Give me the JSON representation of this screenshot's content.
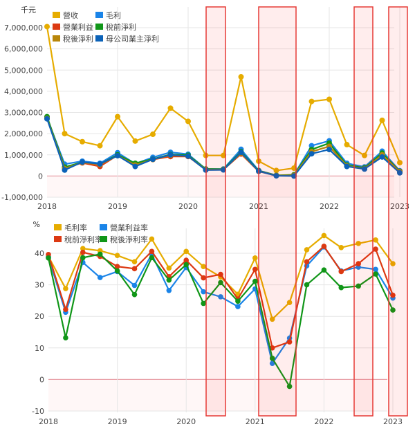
{
  "highlight_periods": [
    "2020Q2-2020Q3",
    "2021Q1-2021Q3",
    "2022Q3",
    "2023Q1"
  ],
  "chart_data": [
    {
      "type": "line",
      "unit_label": "千元",
      "x": [
        "2018Q1",
        "2018Q2",
        "2018Q3",
        "2018Q4",
        "2019Q1",
        "2019Q2",
        "2019Q3",
        "2019Q4",
        "2020Q1",
        "2020Q2",
        "2020Q3",
        "2020Q4",
        "2021Q1",
        "2021Q2",
        "2021Q3",
        "2021Q4",
        "2022Q1",
        "2022Q2",
        "2022Q3",
        "2022Q4",
        "2023Q1"
      ],
      "xticks": [
        "2018",
        "2019",
        "2020",
        "2021",
        "2022",
        "2023"
      ],
      "yticks": [
        "-1,000,000",
        "0",
        "1,000,000",
        "2,000,000",
        "3,000,000",
        "4,000,000",
        "5,000,000",
        "6,000,000",
        "7,000,000"
      ],
      "ylim": [
        -1000000,
        7000000
      ],
      "grid": true,
      "legend": "top-left",
      "series": [
        {
          "name": "營收",
          "color": "#e6ac00",
          "values": [
            7050000,
            2000000,
            1620000,
            1430000,
            2800000,
            1650000,
            1970000,
            3200000,
            2580000,
            970000,
            970000,
            4680000,
            700000,
            260000,
            370000,
            3520000,
            3620000,
            1480000,
            970000,
            2630000,
            630000
          ]
        },
        {
          "name": "毛利",
          "color": "#1a84e8",
          "values": [
            2750000,
            560000,
            700000,
            600000,
            1100000,
            580000,
            880000,
            1120000,
            1030000,
            330000,
            330000,
            1260000,
            260000,
            30000,
            50000,
            1430000,
            1660000,
            600000,
            430000,
            1170000,
            250000
          ]
        },
        {
          "name": "營業利益",
          "color": "#dc3912",
          "values": [
            2720000,
            380000,
            620000,
            450000,
            980000,
            500000,
            780000,
            920000,
            920000,
            300000,
            300000,
            1040000,
            220000,
            20000,
            20000,
            1150000,
            1400000,
            480000,
            340000,
            980000,
            180000
          ]
        },
        {
          "name": "稅前淨利",
          "color": "#109618",
          "values": [
            2800000,
            420000,
            650000,
            560000,
            1000000,
            600000,
            800000,
            1020000,
            980000,
            330000,
            320000,
            1150000,
            250000,
            30000,
            60000,
            1250000,
            1550000,
            520000,
            380000,
            1080000,
            220000
          ]
        },
        {
          "name": "稅後淨利",
          "color": "#b8860b",
          "values": [
            2720000,
            350000,
            640000,
            540000,
            960000,
            520000,
            780000,
            980000,
            940000,
            300000,
            300000,
            1080000,
            230000,
            20000,
            30000,
            1150000,
            1400000,
            480000,
            340000,
            1000000,
            200000
          ]
        },
        {
          "name": "母公司業主淨利",
          "color": "#0b62b8",
          "values": [
            2700000,
            280000,
            660000,
            570000,
            960000,
            450000,
            790000,
            1000000,
            940000,
            280000,
            290000,
            1120000,
            230000,
            10000,
            0,
            1050000,
            1250000,
            450000,
            330000,
            900000,
            150000
          ]
        }
      ]
    },
    {
      "type": "line",
      "unit_label": "%",
      "x": [
        "2018Q1",
        "2018Q2",
        "2018Q3",
        "2018Q4",
        "2019Q1",
        "2019Q2",
        "2019Q3",
        "2019Q4",
        "2020Q1",
        "2020Q2",
        "2020Q3",
        "2020Q4",
        "2021Q1",
        "2021Q2",
        "2021Q3",
        "2021Q4",
        "2022Q1",
        "2022Q2",
        "2022Q3",
        "2022Q4",
        "2023Q1"
      ],
      "xticks": [
        "2018",
        "2019",
        "2020",
        "2021",
        "2022",
        "2023"
      ],
      "yticks": [
        "-10",
        "0",
        "10",
        "20",
        "30",
        "40"
      ],
      "ylim": [
        -10,
        48
      ],
      "grid": true,
      "legend": "top-left",
      "series": [
        {
          "name": "毛利率",
          "color": "#e6ac00",
          "values": [
            39.0,
            28.8,
            41.5,
            40.8,
            39.3,
            37.3,
            44.5,
            35.3,
            40.6,
            35.8,
            32.5,
            27.0,
            38.5,
            19.1,
            24.4,
            41.1,
            45.6,
            41.8,
            43.1,
            44.2,
            36.7
          ]
        },
        {
          "name": "營業利益率",
          "color": "#1a84e8",
          "values": [
            38.8,
            21.3,
            37.1,
            32.3,
            34.2,
            29.8,
            39.7,
            28.2,
            35.5,
            27.8,
            26.2,
            23.1,
            28.7,
            5.1,
            13.1,
            36.0,
            42.0,
            34.4,
            35.6,
            34.9,
            25.8
          ]
        },
        {
          "name": "稅前淨利率",
          "color": "#dc3912",
          "values": [
            39.6,
            22.2,
            40.3,
            39.0,
            35.8,
            35.1,
            40.6,
            32.6,
            37.8,
            32.2,
            33.3,
            25.5,
            34.9,
            10.0,
            11.9,
            37.3,
            42.2,
            34.2,
            36.7,
            41.3,
            26.7
          ]
        },
        {
          "name": "稅後淨利率",
          "color": "#109618",
          "values": [
            38.5,
            13.2,
            38.6,
            39.7,
            34.4,
            26.9,
            38.6,
            31.5,
            36.4,
            24.1,
            30.7,
            24.8,
            31.1,
            6.7,
            -2.2,
            30.0,
            34.7,
            29.1,
            29.6,
            33.4,
            22.0
          ]
        }
      ]
    }
  ]
}
